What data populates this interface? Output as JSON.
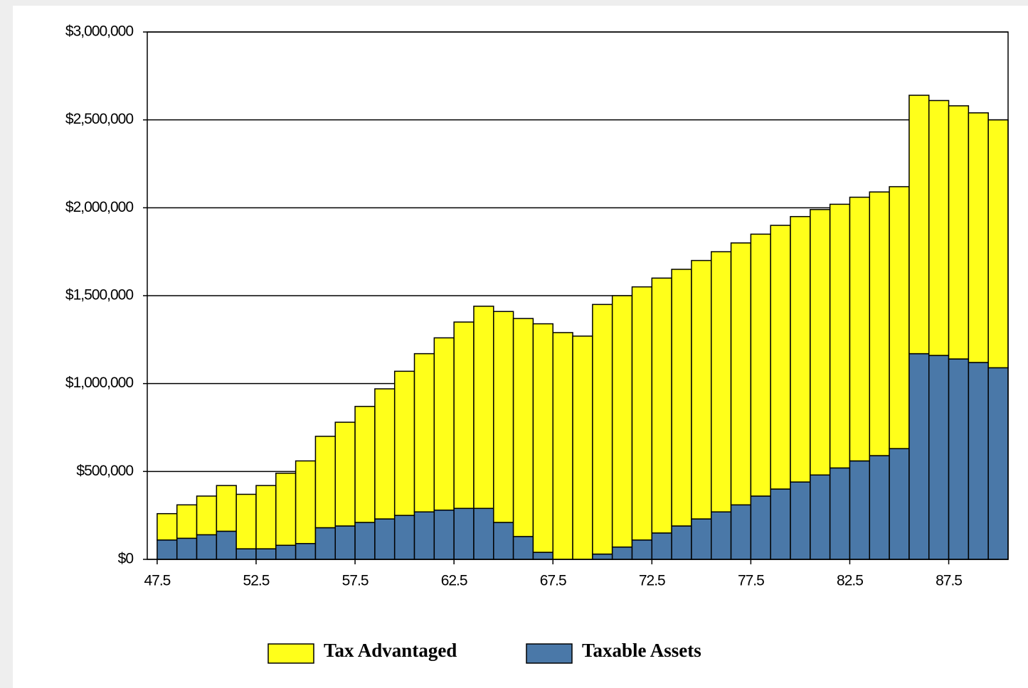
{
  "chart_data": {
    "type": "stacked_bar",
    "x": [
      48,
      49,
      50,
      51,
      52,
      53,
      54,
      55,
      56,
      57,
      58,
      59,
      60,
      61,
      62,
      63,
      64,
      65,
      66,
      67,
      68,
      69,
      70,
      71,
      72,
      73,
      74,
      75,
      76,
      77,
      78,
      79,
      80,
      81,
      82,
      83,
      84,
      85,
      86,
      87,
      88,
      89,
      90
    ],
    "series": [
      {
        "name": "Tax Advantaged",
        "color": "#ffff1a",
        "values": [
          150000,
          190000,
          220000,
          260000,
          310000,
          360000,
          410000,
          470000,
          520000,
          590000,
          660000,
          740000,
          820000,
          900000,
          980000,
          1060000,
          1150000,
          1200000,
          1240000,
          1300000,
          1290000,
          1270000,
          1420000,
          1430000,
          1440000,
          1450000,
          1460000,
          1470000,
          1480000,
          1490000,
          1490000,
          1500000,
          1510000,
          1510000,
          1500000,
          1500000,
          1500000,
          1490000,
          1470000,
          1450000,
          1440000,
          1420000,
          1410000
        ]
      },
      {
        "name": "Taxable Assets",
        "color": "#4a78a8",
        "values": [
          110000,
          120000,
          140000,
          160000,
          60000,
          60000,
          80000,
          90000,
          180000,
          190000,
          210000,
          230000,
          250000,
          270000,
          280000,
          290000,
          290000,
          210000,
          130000,
          40000,
          0,
          0,
          30000,
          70000,
          110000,
          150000,
          190000,
          230000,
          270000,
          310000,
          360000,
          400000,
          440000,
          480000,
          520000,
          560000,
          590000,
          630000,
          1170000,
          1160000,
          1140000,
          1120000,
          1090000
        ]
      }
    ],
    "xlim": [
      47,
      90.5
    ],
    "xticks": [
      47.5,
      52.5,
      57.5,
      62.5,
      67.5,
      72.5,
      77.5,
      82.5,
      87.5
    ],
    "ylim": [
      0,
      3000000
    ],
    "yticks": [
      {
        "value": 0,
        "label": "$0"
      },
      {
        "value": 500000,
        "label": "$500,000"
      },
      {
        "value": 1000000,
        "label": "$1,000,000"
      },
      {
        "value": 1500000,
        "label": "$1,500,000"
      },
      {
        "value": 2000000,
        "label": "$2,000,000"
      },
      {
        "value": 2500000,
        "label": "$2,500,000"
      },
      {
        "value": 3000000,
        "label": "$3,000,000"
      }
    ],
    "grid": true,
    "legend": "bottom"
  }
}
